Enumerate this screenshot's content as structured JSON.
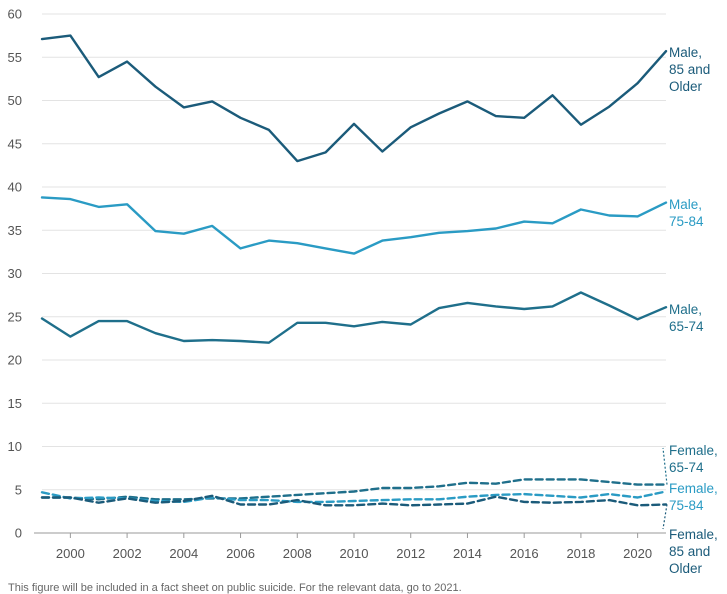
{
  "chart_data": {
    "type": "line",
    "x": [
      1999,
      2000,
      2001,
      2002,
      2003,
      2004,
      2005,
      2006,
      2007,
      2008,
      2009,
      2010,
      2011,
      2012,
      2013,
      2014,
      2015,
      2016,
      2017,
      2018,
      2019,
      2020,
      2021
    ],
    "xticks": [
      2000,
      2002,
      2004,
      2006,
      2008,
      2010,
      2012,
      2014,
      2016,
      2018,
      2020
    ],
    "yticks": [
      0,
      5,
      10,
      15,
      20,
      25,
      30,
      35,
      40,
      45,
      50,
      55,
      60
    ],
    "xlim": [
      1999,
      2021
    ],
    "ylim": [
      0,
      60
    ],
    "grid": true,
    "series": [
      {
        "name": "Male, 85 and Older",
        "label_lines": [
          "Male,",
          "85 and",
          "Older"
        ],
        "color": "#1b5b7a",
        "dashed": false,
        "values": [
          57.1,
          57.5,
          52.7,
          54.5,
          51.6,
          49.2,
          49.9,
          48.0,
          46.6,
          43.0,
          44.0,
          47.3,
          44.1,
          46.9,
          48.5,
          49.9,
          48.2,
          48.0,
          50.6,
          47.2,
          49.3,
          52.0,
          55.7
        ]
      },
      {
        "name": "Male, 75-84",
        "label_lines": [
          "Male,",
          "75-84"
        ],
        "color": "#2a9bc4",
        "dashed": false,
        "values": [
          38.8,
          38.6,
          37.7,
          38.0,
          34.9,
          34.6,
          35.5,
          32.9,
          33.8,
          33.5,
          32.9,
          32.3,
          33.8,
          34.2,
          34.7,
          34.9,
          35.2,
          36.0,
          35.8,
          37.4,
          36.7,
          36.6,
          38.2
        ]
      },
      {
        "name": "Male, 65-74",
        "label_lines": [
          "Male,",
          "65-74"
        ],
        "color": "#1f6f8b",
        "dashed": false,
        "values": [
          24.8,
          22.7,
          24.5,
          24.5,
          23.1,
          22.2,
          22.3,
          22.2,
          22.0,
          24.3,
          24.3,
          23.9,
          24.4,
          24.1,
          26.0,
          26.6,
          26.2,
          25.9,
          26.2,
          27.8,
          26.3,
          24.7,
          26.1
        ]
      },
      {
        "name": "Female, 65-74",
        "label_lines": [
          "Female,",
          "65-74"
        ],
        "color": "#1f6f8b",
        "dashed": true,
        "values": [
          4.1,
          4.1,
          3.9,
          4.2,
          3.9,
          3.9,
          4.0,
          4.0,
          4.2,
          4.4,
          4.6,
          4.8,
          5.2,
          5.2,
          5.4,
          5.8,
          5.7,
          6.2,
          6.2,
          6.2,
          5.9,
          5.6,
          5.6
        ]
      },
      {
        "name": "Female, 75-84",
        "label_lines": [
          "Female,",
          "75-84"
        ],
        "color": "#2a9bc4",
        "dashed": true,
        "values": [
          4.7,
          4.0,
          4.1,
          4.0,
          3.7,
          3.6,
          4.1,
          3.8,
          3.8,
          3.6,
          3.6,
          3.7,
          3.8,
          3.9,
          3.9,
          4.2,
          4.4,
          4.5,
          4.3,
          4.1,
          4.5,
          4.1,
          4.8
        ]
      },
      {
        "name": "Female, 85 and Older",
        "label_lines": [
          "Female,",
          "85 and",
          "Older"
        ],
        "color": "#1b5b7a",
        "dashed": true,
        "values": [
          4.1,
          4.1,
          3.5,
          4.0,
          3.5,
          3.7,
          4.3,
          3.3,
          3.3,
          3.8,
          3.2,
          3.2,
          3.4,
          3.2,
          3.3,
          3.4,
          4.2,
          3.6,
          3.5,
          3.6,
          3.8,
          3.2,
          3.3
        ]
      }
    ]
  },
  "footnote": "This figure will be included in a fact sheet on public suicide. For the relevant data, go to 2021."
}
